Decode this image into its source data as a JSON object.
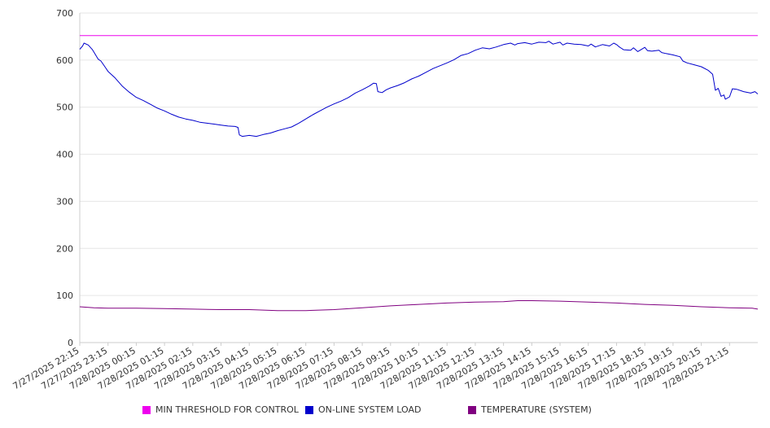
{
  "chart_data": {
    "type": "line",
    "title": "",
    "xlabel": "",
    "ylabel": "",
    "ylim": [
      0,
      700
    ],
    "y_ticks": [
      "0",
      "100",
      "200",
      "300",
      "400",
      "500",
      "600",
      "700"
    ],
    "x_tick_labels": [
      "7/27/2025 22:15",
      "7/27/2025 23:15",
      "7/28/2025 00:15",
      "7/28/2025 01:15",
      "7/28/2025 02:15",
      "7/28/2025 03:15",
      "7/28/2025 04:15",
      "7/28/2025 05:15",
      "7/28/2025 06:15",
      "7/28/2025 07:15",
      "7/28/2025 08:15",
      "7/28/2025 09:15",
      "7/28/2025 10:15",
      "7/28/2025 11:15",
      "7/28/2025 12:15",
      "7/28/2025 13:15",
      "7/28/2025 14:15",
      "7/28/2025 15:15",
      "7/28/2025 16:15",
      "7/28/2025 17:15",
      "7/28/2025 18:15",
      "7/28/2025 19:15",
      "7/28/2025 20:15",
      "7/28/2025 21:15"
    ],
    "x_range_hours": [
      0,
      24
    ],
    "grid": "horizontal",
    "legend_position": "bottom",
    "series": [
      {
        "name": "MIN THRESHOLD FOR CONTROL",
        "color": "#ee00ee",
        "points": [
          [
            0,
            652
          ],
          [
            24,
            652
          ]
        ]
      },
      {
        "name": "ON-LINE SYSTEM LOAD",
        "color": "#0000cc",
        "points": [
          [
            0,
            623
          ],
          [
            0.1,
            630
          ],
          [
            0.15,
            636
          ],
          [
            0.3,
            632
          ],
          [
            0.45,
            622
          ],
          [
            0.55,
            612
          ],
          [
            0.65,
            602
          ],
          [
            0.75,
            598
          ],
          [
            0.9,
            585
          ],
          [
            1.0,
            576
          ],
          [
            1.25,
            562
          ],
          [
            1.5,
            545
          ],
          [
            1.75,
            532
          ],
          [
            2.0,
            521
          ],
          [
            2.25,
            514
          ],
          [
            2.5,
            506
          ],
          [
            2.75,
            498
          ],
          [
            3.0,
            492
          ],
          [
            3.25,
            485
          ],
          [
            3.5,
            479
          ],
          [
            3.75,
            475
          ],
          [
            4.0,
            472
          ],
          [
            4.25,
            468
          ],
          [
            4.5,
            466
          ],
          [
            4.75,
            464
          ],
          [
            5.0,
            462
          ],
          [
            5.25,
            460
          ],
          [
            5.5,
            459
          ],
          [
            5.6,
            457
          ],
          [
            5.65,
            441
          ],
          [
            5.75,
            438
          ],
          [
            6.0,
            440
          ],
          [
            6.25,
            438
          ],
          [
            6.5,
            442
          ],
          [
            6.75,
            445
          ],
          [
            7.0,
            450
          ],
          [
            7.25,
            454
          ],
          [
            7.5,
            458
          ],
          [
            7.75,
            466
          ],
          [
            8.0,
            475
          ],
          [
            8.25,
            484
          ],
          [
            8.5,
            492
          ],
          [
            8.75,
            500
          ],
          [
            9.0,
            507
          ],
          [
            9.25,
            513
          ],
          [
            9.5,
            520
          ],
          [
            9.75,
            530
          ],
          [
            10.0,
            537
          ],
          [
            10.25,
            545
          ],
          [
            10.4,
            551
          ],
          [
            10.5,
            550
          ],
          [
            10.55,
            533
          ],
          [
            10.7,
            531
          ],
          [
            10.85,
            537
          ],
          [
            11.0,
            541
          ],
          [
            11.25,
            546
          ],
          [
            11.5,
            552
          ],
          [
            11.75,
            560
          ],
          [
            12.0,
            566
          ],
          [
            12.25,
            574
          ],
          [
            12.5,
            582
          ],
          [
            12.75,
            588
          ],
          [
            13.0,
            594
          ],
          [
            13.25,
            601
          ],
          [
            13.5,
            610
          ],
          [
            13.75,
            614
          ],
          [
            14.0,
            621
          ],
          [
            14.25,
            626
          ],
          [
            14.5,
            624
          ],
          [
            14.75,
            628
          ],
          [
            15.0,
            633
          ],
          [
            15.25,
            636
          ],
          [
            15.4,
            632
          ],
          [
            15.5,
            635
          ],
          [
            15.75,
            637
          ],
          [
            16.0,
            634
          ],
          [
            16.25,
            638
          ],
          [
            16.5,
            637
          ],
          [
            16.6,
            640
          ],
          [
            16.75,
            634
          ],
          [
            17.0,
            638
          ],
          [
            17.1,
            632
          ],
          [
            17.25,
            636
          ],
          [
            17.5,
            634
          ],
          [
            17.75,
            633
          ],
          [
            18.0,
            630
          ],
          [
            18.1,
            634
          ],
          [
            18.25,
            628
          ],
          [
            18.5,
            633
          ],
          [
            18.75,
            630
          ],
          [
            18.9,
            636
          ],
          [
            19.0,
            633
          ],
          [
            19.1,
            628
          ],
          [
            19.25,
            622
          ],
          [
            19.5,
            621
          ],
          [
            19.6,
            626
          ],
          [
            19.75,
            618
          ],
          [
            20.0,
            627
          ],
          [
            20.1,
            620
          ],
          [
            20.25,
            619
          ],
          [
            20.5,
            621
          ],
          [
            20.6,
            616
          ],
          [
            20.75,
            614
          ],
          [
            21.0,
            611
          ],
          [
            21.25,
            607
          ],
          [
            21.35,
            598
          ],
          [
            21.5,
            594
          ],
          [
            21.75,
            590
          ],
          [
            22.0,
            586
          ],
          [
            22.25,
            578
          ],
          [
            22.4,
            570
          ],
          [
            22.5,
            536
          ],
          [
            22.6,
            540
          ],
          [
            22.7,
            523
          ],
          [
            22.8,
            526
          ],
          [
            22.85,
            517
          ],
          [
            23.0,
            522
          ],
          [
            23.1,
            539
          ],
          [
            23.25,
            538
          ],
          [
            23.5,
            533
          ],
          [
            23.75,
            530
          ],
          [
            23.9,
            533
          ],
          [
            24.0,
            528
          ]
        ]
      },
      {
        "name": "TEMPERATURE (SYSTEM)",
        "color": "#800080",
        "points": [
          [
            0,
            76
          ],
          [
            0.5,
            74
          ],
          [
            1,
            73
          ],
          [
            2,
            73
          ],
          [
            3,
            72
          ],
          [
            4,
            71
          ],
          [
            5,
            70
          ],
          [
            6,
            70
          ],
          [
            7,
            68
          ],
          [
            8,
            68
          ],
          [
            9,
            70
          ],
          [
            10,
            74
          ],
          [
            11,
            78
          ],
          [
            12,
            81
          ],
          [
            13,
            84
          ],
          [
            14,
            86
          ],
          [
            15,
            87
          ],
          [
            15.5,
            89
          ],
          [
            16,
            89
          ],
          [
            17,
            88
          ],
          [
            18,
            86
          ],
          [
            19,
            84
          ],
          [
            20,
            81
          ],
          [
            21,
            79
          ],
          [
            22,
            76
          ],
          [
            23,
            74
          ],
          [
            23.8,
            73
          ],
          [
            24,
            71
          ]
        ]
      }
    ]
  }
}
